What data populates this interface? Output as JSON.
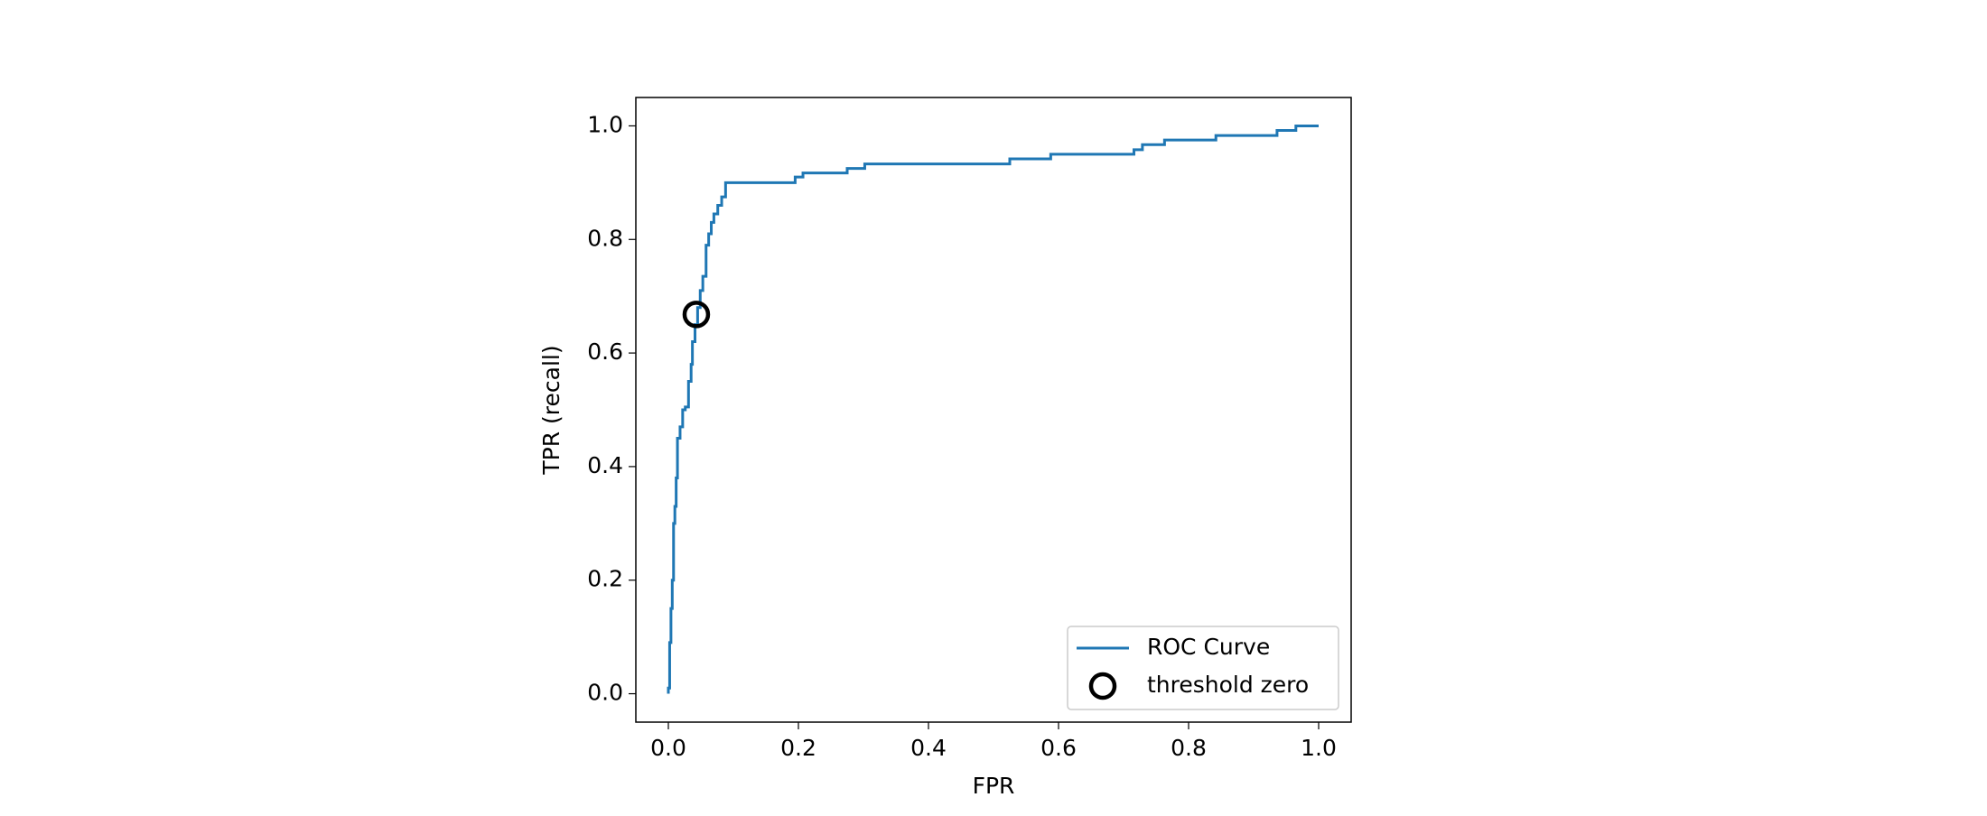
{
  "chart_data": {
    "type": "line",
    "xlabel": "FPR",
    "ylabel": "TPR (recall)",
    "xlim": [
      -0.05,
      1.05
    ],
    "ylim": [
      -0.05,
      1.05
    ],
    "xticks": [
      {
        "value": 0,
        "label": "0.0"
      },
      {
        "value": 0.2,
        "label": "0.2"
      },
      {
        "value": 0.4,
        "label": "0.4"
      },
      {
        "value": 0.6,
        "label": "0.6"
      },
      {
        "value": 0.8,
        "label": "0.8"
      },
      {
        "value": 1,
        "label": "1.0"
      }
    ],
    "yticks": [
      {
        "value": 0,
        "label": "0.0"
      },
      {
        "value": 0.2,
        "label": "0.2"
      },
      {
        "value": 0.4,
        "label": "0.4"
      },
      {
        "value": 0.6,
        "label": "0.6"
      },
      {
        "value": 0.8,
        "label": "0.8"
      },
      {
        "value": 1,
        "label": "1.0"
      }
    ],
    "legend": "lower right",
    "series": [
      {
        "name": "ROC Curve",
        "type": "line",
        "color": "#1f77b4",
        "x": [
          0,
          0,
          0.002,
          0.002,
          0.004,
          0.004,
          0.006,
          0.006,
          0.008,
          0.008,
          0.01,
          0.01,
          0.012,
          0.012,
          0.014,
          0.014,
          0.018,
          0.018,
          0.022,
          0.022,
          0.026,
          0.026,
          0.031,
          0.031,
          0.035,
          0.035,
          0.037,
          0.037,
          0.041,
          0.041,
          0.045,
          0.045,
          0.049,
          0.049,
          0.053,
          0.053,
          0.058,
          0.058,
          0.062,
          0.062,
          0.066,
          0.066,
          0.07,
          0.07,
          0.076,
          0.076,
          0.082,
          0.082,
          0.088,
          0.088,
          0.195,
          0.195,
          0.207,
          0.207,
          0.275,
          0.275,
          0.302,
          0.302,
          0.525,
          0.525,
          0.588,
          0.588,
          0.716,
          0.716,
          0.729,
          0.729,
          0.763,
          0.763,
          0.842,
          0.842,
          0.936,
          0.936,
          0.965,
          0.965,
          1.0
        ],
        "values": [
          0,
          0.01,
          0.01,
          0.09,
          0.09,
          0.15,
          0.15,
          0.2,
          0.2,
          0.3,
          0.3,
          0.33,
          0.33,
          0.38,
          0.38,
          0.45,
          0.45,
          0.47,
          0.47,
          0.5,
          0.5,
          0.505,
          0.505,
          0.55,
          0.55,
          0.58,
          0.58,
          0.62,
          0.62,
          0.65,
          0.65,
          0.68,
          0.68,
          0.71,
          0.71,
          0.735,
          0.735,
          0.79,
          0.79,
          0.81,
          0.81,
          0.83,
          0.83,
          0.845,
          0.845,
          0.86,
          0.86,
          0.875,
          0.875,
          0.9,
          0.9,
          0.91,
          0.91,
          0.917,
          0.917,
          0.925,
          0.925,
          0.933,
          0.933,
          0.942,
          0.942,
          0.95,
          0.95,
          0.958,
          0.958,
          0.967,
          0.967,
          0.975,
          0.975,
          0.983,
          0.983,
          0.992,
          0.992,
          1.0,
          1.0
        ]
      },
      {
        "name": "threshold zero",
        "type": "scatter",
        "color": "#000000",
        "x": [
          0.043
        ],
        "values": [
          0.668
        ]
      }
    ]
  }
}
